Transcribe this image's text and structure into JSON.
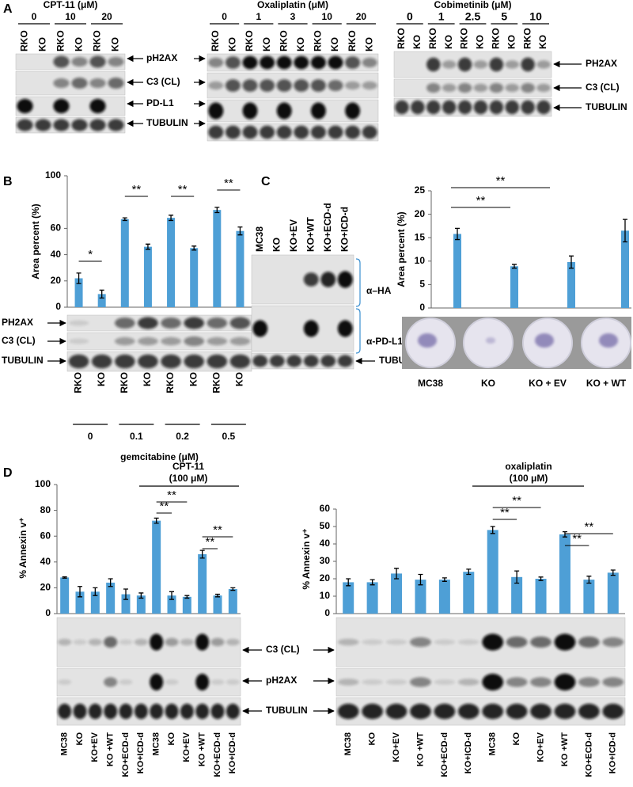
{
  "panel_labels": [
    "A",
    "B",
    "C",
    "D"
  ],
  "panel_a": [
    {
      "title": "CPT-11 (μM)",
      "doses": [
        "0",
        "10",
        "20"
      ],
      "lanes": [
        "RKO",
        "KO"
      ],
      "bands": [
        "pH2AX",
        "C3 (CL)",
        "PD-L1",
        "TUBULIN"
      ]
    },
    {
      "title": "Oxaliplatin (μM)",
      "doses": [
        "0",
        "1",
        "3",
        "10",
        "20"
      ],
      "lanes": [
        "RKO",
        "KO"
      ]
    },
    {
      "title": "Cobimetinib (μM)",
      "doses": [
        "0",
        "1",
        "2.5",
        "5",
        "10"
      ],
      "lanes": [
        "RKO",
        "KO"
      ],
      "bands": [
        "PH2AX",
        "C3 (CL)",
        "TUBULIN"
      ]
    }
  ],
  "panel_b": {
    "bands": [
      "PH2AX",
      "C3 (CL)",
      "TUBULIN"
    ]
  },
  "panel_c": {
    "lanes": [
      "MC38",
      "KO",
      "KO+EV",
      "KO+WT",
      "KO+ECD-d",
      "KO+ICD-d"
    ],
    "bands": [
      "α–HA",
      "α-PD-L1",
      "TUBULIN"
    ]
  },
  "panel_d": {
    "bands": [
      "C3 (CL)",
      "pH2AX",
      "TUBULIN"
    ]
  },
  "chart_data": [
    {
      "type": "bar",
      "ylabel": "Area percent (%)",
      "xlabel": "gemcitabine (μM)",
      "categories": [
        "0",
        "0.1",
        "0.2",
        "0.5"
      ],
      "series": [
        {
          "name": "RKO",
          "color": "#4e9fd6",
          "values": [
            22,
            67,
            68,
            74
          ],
          "errors": [
            4,
            1,
            2,
            2
          ]
        },
        {
          "name": "KO",
          "color": "#4e9fd6",
          "values": [
            10,
            46,
            45,
            58
          ],
          "errors": [
            3,
            2,
            1.5,
            3
          ]
        }
      ],
      "ylim": [
        0,
        100
      ],
      "yticks": [
        0,
        20,
        40,
        60,
        100
      ],
      "annotations": [
        "*",
        "**",
        "**",
        "**"
      ]
    },
    {
      "type": "bar",
      "ylabel": "Area percent (%)",
      "categories": [
        "MC38",
        "KO",
        "KO + EV",
        "KO + WT"
      ],
      "values": [
        15.8,
        8.9,
        9.8,
        16.5
      ],
      "errors": [
        1.2,
        0.4,
        1.3,
        2.4
      ],
      "color": "#4e9fd6",
      "ylim": [
        0,
        25
      ],
      "yticks": [
        0,
        5,
        10,
        15,
        20,
        25
      ],
      "annotations": [
        "**",
        "**"
      ]
    },
    {
      "type": "bar",
      "title": "CPT-11",
      "subtitle": "(100 μM)",
      "ylabel": "% Annexin v⁺",
      "categories": [
        "MC38",
        "KO",
        "KO+EV",
        "KO +WT",
        "KO+ECD-d",
        "KO+ICD-d",
        "MC38",
        "KO",
        "KO+EV",
        "KO +WT",
        "KO+ECD-d",
        "KO+ICD-d"
      ],
      "values": [
        28,
        17,
        17,
        24,
        15,
        14,
        72,
        14,
        13,
        46,
        14,
        19
      ],
      "errors": [
        0.5,
        4,
        3,
        3,
        4,
        2,
        2,
        3,
        1,
        3,
        1,
        1
      ],
      "color": "#4e9fd6",
      "ylim": [
        0,
        100
      ],
      "yticks": [
        0,
        20,
        40,
        60,
        80,
        100
      ],
      "annotations": [
        "**",
        "**",
        "**",
        "**"
      ]
    },
    {
      "type": "bar",
      "title": "oxaliplatin",
      "subtitle": "(100 μM)",
      "ylabel": "% Annexin v⁺",
      "categories": [
        "MC38",
        "KO",
        "KO+EV",
        "KO +WT",
        "KO+ECD-d",
        "KO+ICD-d",
        "MC38",
        "KO",
        "KO+EV",
        "KO +WT",
        "KO+ECD-d",
        "KO+ICD-d"
      ],
      "values": [
        18,
        18,
        23,
        19.5,
        19.5,
        24,
        48,
        21,
        20,
        45.5,
        19.5,
        23.5
      ],
      "errors": [
        2,
        1.5,
        3,
        3,
        1,
        1.5,
        2,
        3.5,
        1,
        1.5,
        2,
        1.5
      ],
      "color": "#4e9fd6",
      "ylim": [
        0,
        60
      ],
      "yticks": [
        0,
        10,
        20,
        30,
        40,
        50,
        60
      ],
      "annotations": [
        "**",
        "**",
        "**",
        "**"
      ]
    }
  ]
}
